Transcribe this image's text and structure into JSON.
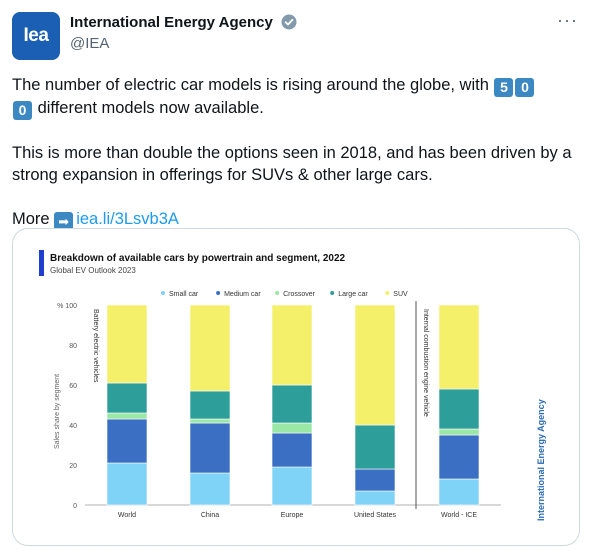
{
  "tweet": {
    "author_name": "International Energy Agency",
    "author_handle": "@IEA",
    "avatar_text": "Iea",
    "more_label": "···",
    "line1_pre": "The number of electric car models is rising around the globe, with ",
    "keycaps": [
      "5",
      "0",
      "0"
    ],
    "line1_post": " different models now available.",
    "para2": "This is more than double the options seen in 2018, and has been driven by a strong expansion in offerings for SUVs & other large cars.",
    "more_text": "More",
    "link": "iea.li/3Lsvb3A"
  },
  "chart_data": {
    "type": "bar",
    "stacked": true,
    "title": "Breakdown of available cars by powertrain and segment, 2022",
    "subtitle": "Global EV Outlook 2023",
    "ylabel": "Sales share by segment",
    "ytick_prefix": "%",
    "ylim": [
      0,
      100
    ],
    "yticks": [
      0,
      20,
      40,
      60,
      80,
      100
    ],
    "categories": [
      "World",
      "China",
      "Europe",
      "United States",
      "World - ICE"
    ],
    "series": [
      {
        "name": "Small car",
        "color": "#7fd3f7",
        "values": [
          21,
          16,
          19,
          7,
          13
        ]
      },
      {
        "name": "Medium car",
        "color": "#3a6fc4",
        "values": [
          22,
          25,
          17,
          11,
          22
        ]
      },
      {
        "name": "Crossover",
        "color": "#9be8a6",
        "values": [
          3,
          2,
          5,
          0,
          3
        ]
      },
      {
        "name": "Large car",
        "color": "#2e9e9a",
        "values": [
          15,
          14,
          19,
          22,
          20
        ]
      },
      {
        "name": "SUV",
        "color": "#f5f06a",
        "values": [
          39,
          43,
          40,
          60,
          42
        ]
      }
    ],
    "group_labels": [
      "Battery electric vehicles",
      "Internal combustion engine vehicle"
    ],
    "watermark": "International Energy Agency",
    "grid": false,
    "legend_position": "top"
  }
}
